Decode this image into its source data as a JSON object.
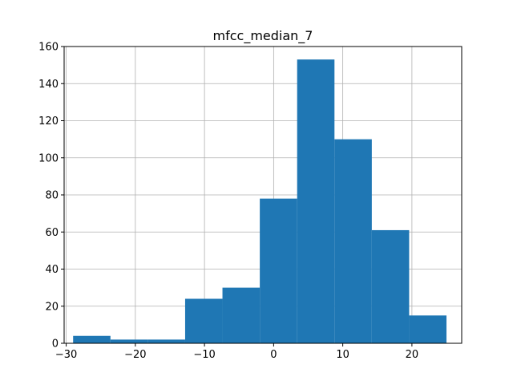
{
  "chart_data": {
    "type": "bar",
    "title": "mfcc_median_7",
    "xlabel": "",
    "ylabel": "",
    "xlim": [
      -30.3,
      27.2
    ],
    "ylim": [
      0,
      160
    ],
    "grid": true,
    "bin_edges": [
      -29.0,
      -23.6,
      -18.2,
      -12.8,
      -7.4,
      -2.0,
      3.4,
      8.8,
      14.2,
      19.6,
      25.0
    ],
    "values": [
      4,
      2,
      2,
      24,
      30,
      78,
      153,
      110,
      61,
      15
    ],
    "xticks": [
      -30,
      -20,
      -10,
      0,
      10,
      20
    ],
    "xtick_labels": [
      "−30",
      "−20",
      "−10",
      "0",
      "10",
      "20"
    ],
    "yticks": [
      0,
      20,
      40,
      60,
      80,
      100,
      120,
      140,
      160
    ],
    "ytick_labels": [
      "0",
      "20",
      "40",
      "60",
      "80",
      "100",
      "120",
      "140",
      "160"
    ],
    "colors": {
      "bar": "#1f77b4",
      "grid": "#b0b0b0",
      "axis": "#000000"
    }
  }
}
